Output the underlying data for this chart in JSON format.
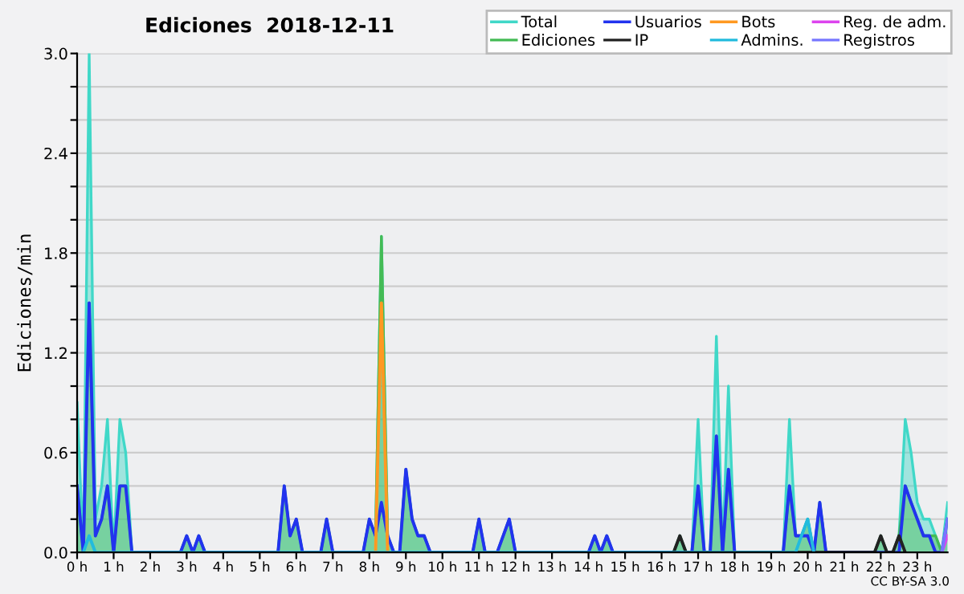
{
  "chart_data": {
    "type": "line",
    "title": "Ediciones  2018-12-11",
    "ylabel": "Ediciones/min",
    "x": [
      0,
      0.17,
      0.33,
      0.5,
      0.67,
      0.83,
      1.0,
      1.17,
      1.33,
      1.5,
      2.83,
      3.0,
      3.17,
      3.33,
      3.5,
      5.5,
      5.67,
      5.83,
      6.0,
      6.17,
      6.67,
      6.83,
      7.0,
      7.83,
      8.0,
      8.17,
      8.33,
      8.5,
      8.67,
      8.83,
      9.0,
      9.17,
      9.33,
      9.5,
      9.67,
      10.83,
      11.0,
      11.17,
      11.5,
      11.83,
      12.0,
      14.0,
      14.17,
      14.33,
      14.5,
      14.67,
      16.33,
      16.5,
      16.67,
      16.83,
      17.0,
      17.17,
      17.33,
      17.5,
      17.67,
      17.83,
      18.0,
      19.33,
      19.5,
      19.67,
      19.83,
      20.0,
      20.17,
      20.33,
      20.5,
      21.83,
      22.0,
      22.17,
      22.33,
      22.5,
      22.67,
      22.83,
      23.0,
      23.17,
      23.33,
      23.5,
      23.67,
      23.83
    ],
    "series": [
      {
        "name": "Total",
        "type": "area",
        "color": "#40d8c8",
        "values": [
          0.9,
          0,
          3.0,
          0.2,
          0.4,
          0.8,
          0,
          0.8,
          0.6,
          0,
          0,
          0.1,
          0,
          0.1,
          0,
          0,
          0.4,
          0.1,
          0.2,
          0,
          0,
          0.2,
          0,
          0,
          0.2,
          0.1,
          1.9,
          0.1,
          0,
          0,
          0.5,
          0.2,
          0.1,
          0.1,
          0,
          0,
          0.2,
          0,
          0,
          0.2,
          0,
          0,
          0.1,
          0,
          0.1,
          0,
          0,
          0.1,
          0,
          0,
          0.8,
          0,
          0,
          1.3,
          0,
          1.0,
          0,
          0,
          0.8,
          0.1,
          0.1,
          0.2,
          0,
          0.3,
          0,
          0,
          0.1,
          0,
          0,
          0.1,
          0.8,
          0.6,
          0.3,
          0.2,
          0.2,
          0.1,
          0,
          0.3
        ]
      },
      {
        "name": "Ediciones",
        "type": "area",
        "color": "#44bb55",
        "values": [
          0.4,
          0,
          1.5,
          0.1,
          0.2,
          0.4,
          0,
          0.4,
          0.4,
          0,
          0,
          0.1,
          0,
          0.1,
          0,
          0,
          0.4,
          0.1,
          0.2,
          0,
          0,
          0.2,
          0,
          0,
          0.2,
          0.1,
          1.9,
          0.1,
          0,
          0,
          0.5,
          0.2,
          0.1,
          0.1,
          0,
          0,
          0.2,
          0,
          0,
          0.2,
          0,
          0,
          0.1,
          0,
          0.1,
          0,
          0,
          0.1,
          0,
          0,
          0.4,
          0,
          0,
          0.7,
          0,
          0.5,
          0,
          0,
          0.4,
          0.1,
          0.1,
          0.2,
          0,
          0.3,
          0,
          0,
          0.1,
          0,
          0,
          0.1,
          0.4,
          0.3,
          0.2,
          0.1,
          0.1,
          0.1,
          0,
          0.2
        ]
      },
      {
        "name": "Usuarios",
        "color": "#2233ee",
        "values": [
          0.4,
          0,
          1.5,
          0.1,
          0.2,
          0.4,
          0,
          0.4,
          0.4,
          0,
          0,
          0.1,
          0,
          0.1,
          0,
          0,
          0.4,
          0.1,
          0.2,
          0,
          0,
          0.2,
          0,
          0,
          0.2,
          0.1,
          0.3,
          0.1,
          0,
          0,
          0.5,
          0.2,
          0.1,
          0.1,
          0,
          0,
          0.2,
          0,
          0,
          0.2,
          0,
          0,
          0.1,
          0,
          0.1,
          0,
          0,
          0,
          0,
          0,
          0.4,
          0,
          0,
          0.7,
          0,
          0.5,
          0,
          0,
          0.4,
          0.1,
          0.1,
          0.1,
          0,
          0.3,
          0,
          0,
          0,
          0,
          0,
          0,
          0.4,
          0.3,
          0.2,
          0.1,
          0.1,
          0,
          0,
          0.2
        ]
      },
      {
        "name": "IP",
        "color": "#222222",
        "x": [
          16.33,
          16.5,
          16.67,
          21.83,
          22.0,
          22.17,
          22.33,
          22.5,
          22.67
        ],
        "values": [
          0,
          0.1,
          0,
          0,
          0.1,
          0,
          0,
          0.1,
          0
        ]
      },
      {
        "name": "Bots",
        "color": "#ff9922",
        "x": [
          8.17,
          8.33,
          8.5
        ],
        "values": [
          0,
          1.5,
          0
        ]
      },
      {
        "name": "Admins.",
        "color": "#22bbdd",
        "x": [
          0.17,
          0.33,
          0.5,
          19.67,
          19.83,
          20.0,
          20.17
        ],
        "values": [
          0,
          0.1,
          0,
          0,
          0.1,
          0.2,
          0
        ]
      },
      {
        "name": "Reg. de adm.",
        "color": "#dd44ee",
        "x": [
          23.67,
          23.83
        ],
        "values": [
          0,
          0.1
        ]
      },
      {
        "name": "Registros",
        "color": "#7777ff",
        "x": [
          23.67,
          23.83
        ],
        "values": [
          0,
          0.2
        ]
      }
    ],
    "xlim": [
      0,
      23.83
    ],
    "xticks": [
      {
        "value": 0,
        "label": "0 h"
      },
      {
        "value": 1,
        "label": "1 h"
      },
      {
        "value": 2,
        "label": "2 h"
      },
      {
        "value": 3,
        "label": "3 h"
      },
      {
        "value": 4,
        "label": "4 h"
      },
      {
        "value": 5,
        "label": "5 h"
      },
      {
        "value": 6,
        "label": "6 h"
      },
      {
        "value": 7,
        "label": "7 h"
      },
      {
        "value": 8,
        "label": "8 h"
      },
      {
        "value": 9,
        "label": "9 h"
      },
      {
        "value": 10,
        "label": "10 h"
      },
      {
        "value": 11,
        "label": "11 h"
      },
      {
        "value": 12,
        "label": "12 h"
      },
      {
        "value": 13,
        "label": "13 h"
      },
      {
        "value": 14,
        "label": "14 h"
      },
      {
        "value": 15,
        "label": "15 h"
      },
      {
        "value": 16,
        "label": "16 h"
      },
      {
        "value": 17,
        "label": "17 h"
      },
      {
        "value": 18,
        "label": "18 h"
      },
      {
        "value": 19,
        "label": "19 h"
      },
      {
        "value": 20,
        "label": "20 h"
      },
      {
        "value": 21,
        "label": "21 h"
      },
      {
        "value": 22,
        "label": "22 h"
      },
      {
        "value": 23,
        "label": "23 h"
      }
    ],
    "ylim": [
      0,
      3.0
    ],
    "yticks": [
      {
        "value": 0,
        "label": "0.0"
      },
      {
        "value": 0.2,
        "label": null
      },
      {
        "value": 0.4,
        "label": null
      },
      {
        "value": 0.6,
        "label": "0.6"
      },
      {
        "value": 0.8,
        "label": null
      },
      {
        "value": 1.0,
        "label": null
      },
      {
        "value": 1.2,
        "label": "1.2"
      },
      {
        "value": 1.4,
        "label": null
      },
      {
        "value": 1.6,
        "label": null
      },
      {
        "value": 1.8,
        "label": "1.8"
      },
      {
        "value": 2.0,
        "label": null
      },
      {
        "value": 2.2,
        "label": null
      },
      {
        "value": 2.4,
        "label": "2.4"
      },
      {
        "value": 2.6,
        "label": null
      },
      {
        "value": 2.8,
        "label": null
      },
      {
        "value": 3.0,
        "label": "3.0"
      }
    ],
    "grid": "y",
    "legend": "top right",
    "marker": "none",
    "line_style": "solid",
    "annotations": [
      "CC BY-SA 3.0"
    ]
  }
}
